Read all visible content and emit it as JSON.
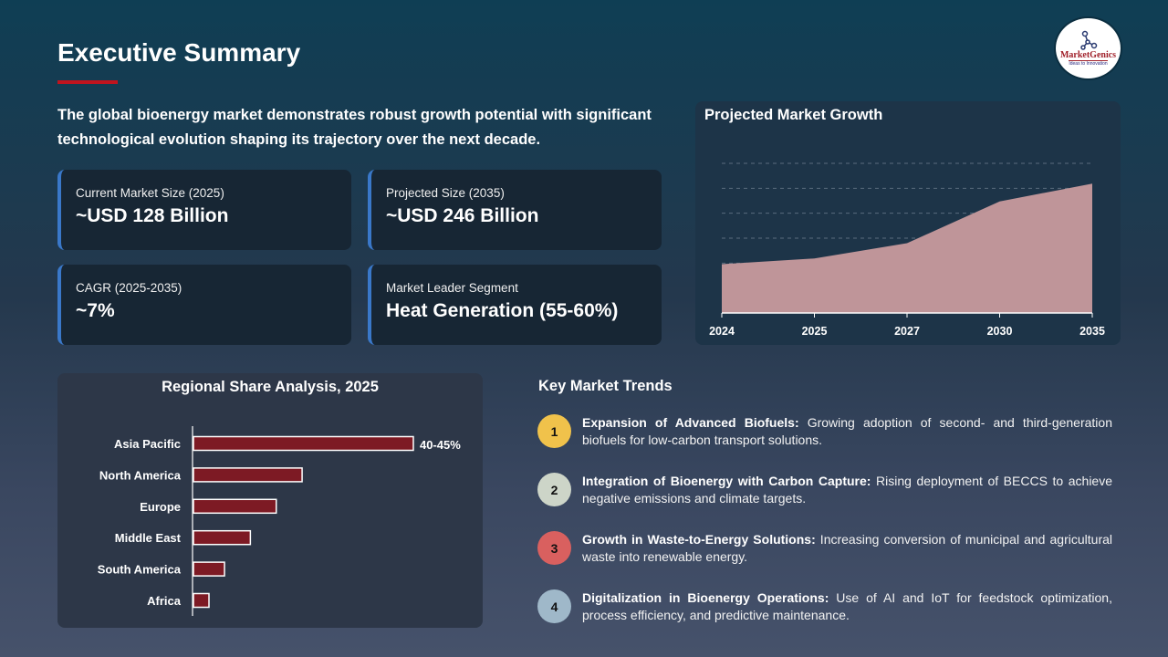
{
  "header": {
    "title": "Executive Summary",
    "logo_text": "MarketGenics",
    "logo_tagline": "Ideas to Innovation"
  },
  "intro": "The global bioenergy market demonstrates robust growth potential with significant technological evolution shaping its trajectory over the next decade.",
  "cards": [
    {
      "label": "Current Market Size (2025)",
      "value": "~USD 128 Billion"
    },
    {
      "label": "Projected Size (2035)",
      "value": "~USD 246 Billion"
    },
    {
      "label": "CAGR (2025-2035)",
      "value": "~7%"
    },
    {
      "label": "Market Leader Segment",
      "value": "Heat Generation (55-60%)"
    }
  ],
  "colors": {
    "accent": "#c0141e",
    "card_border": "#3a78c9",
    "area_fill": "#bf9599",
    "bar_fill": "#7d1a24"
  },
  "chart_data": [
    {
      "type": "area",
      "title": "Projected Market Growth",
      "categories": [
        "2024",
        "2025",
        "2027",
        "2030",
        "2035"
      ],
      "values": [
        119,
        128,
        152,
        218,
        246
      ],
      "ylim": [
        42,
        278
      ],
      "grid": true,
      "ylabel": "",
      "xlabel": ""
    },
    {
      "type": "bar",
      "orientation": "horizontal",
      "title": "Regional Share Analysis, 2025",
      "categories": [
        "Asia Pacific",
        "North America",
        "Europe",
        "Middle East",
        "South America",
        "Africa"
      ],
      "values": [
        42.5,
        21,
        16,
        11,
        6,
        3
      ],
      "data_labels": [
        "40-45%",
        "",
        "",
        "",
        "",
        ""
      ],
      "grid": false
    }
  ],
  "trends": {
    "title": "Key Market Trends",
    "items": [
      {
        "num": "1",
        "color": "#f0c24b",
        "heading": "Expansion of Advanced Biofuels:",
        "text": " Growing adoption of second- and third-generation biofuels for low-carbon transport solutions."
      },
      {
        "num": "2",
        "color": "#cdd5c8",
        "heading": "Integration of Bioenergy with Carbon Capture:",
        "text": " Rising deployment of BECCS to achieve negative emissions and climate targets."
      },
      {
        "num": "3",
        "color": "#d9605f",
        "heading": "Growth in Waste-to-Energy Solutions:",
        "text": " Increasing conversion of municipal and agricultural waste into renewable energy."
      },
      {
        "num": "4",
        "color": "#9fb8c9",
        "heading": "Digitalization in Bioenergy Operations:",
        "text": " Use of AI and IoT for feedstock optimization, process efficiency, and predictive maintenance."
      }
    ]
  }
}
